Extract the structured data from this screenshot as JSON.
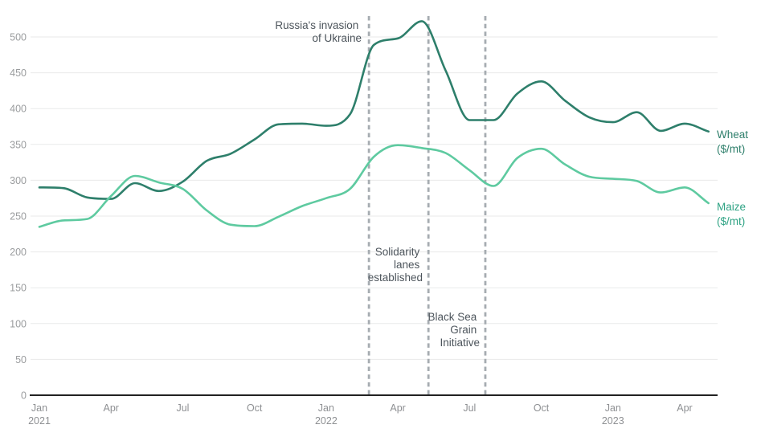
{
  "chart_data": {
    "type": "line",
    "title": "",
    "xlabel": "",
    "ylabel": "",
    "ylim": [
      0,
      530
    ],
    "grid": "horizontal",
    "yticks": [
      0,
      50,
      100,
      150,
      200,
      250,
      300,
      350,
      400,
      450,
      500
    ],
    "x": [
      "Jan 2021",
      "Feb 2021",
      "Mar 2021",
      "Apr 2021",
      "May 2021",
      "Jun 2021",
      "Jul 2021",
      "Aug 2021",
      "Sep 2021",
      "Oct 2021",
      "Nov 2021",
      "Dec 2021",
      "Jan 2022",
      "Feb 2022",
      "Mar 2022",
      "Apr 2022",
      "May 2022",
      "Jun 2022",
      "Jul 2022",
      "Aug 2022",
      "Sep 2022",
      "Oct 2022",
      "Nov 2022",
      "Dec 2022",
      "Jan 2023",
      "Feb 2023",
      "Mar 2023",
      "Apr 2023",
      "May 2023"
    ],
    "x_ticks": [
      {
        "month": 0,
        "label": "Jan",
        "year": "2021"
      },
      {
        "month": 3,
        "label": "Apr",
        "year": ""
      },
      {
        "month": 6,
        "label": "Jul",
        "year": ""
      },
      {
        "month": 9,
        "label": "Oct",
        "year": ""
      },
      {
        "month": 12,
        "label": "Jan",
        "year": "2022"
      },
      {
        "month": 15,
        "label": "Apr",
        "year": ""
      },
      {
        "month": 18,
        "label": "Jul",
        "year": ""
      },
      {
        "month": 21,
        "label": "Oct",
        "year": ""
      },
      {
        "month": 24,
        "label": "Jan",
        "year": "2023"
      },
      {
        "month": 27,
        "label": "Apr",
        "year": ""
      }
    ],
    "series": [
      {
        "name": "Wheat ($/mt)",
        "color": "#2e7f6b",
        "values": [
          290,
          289,
          276,
          274,
          296,
          285,
          298,
          327,
          337,
          357,
          378,
          379,
          376,
          392,
          489,
          498,
          522,
          453,
          384,
          384,
          421,
          438,
          411,
          388,
          381,
          395,
          369,
          379,
          368
        ]
      },
      {
        "name": "Maize ($/mt)",
        "color": "#5ecaa0",
        "values": [
          235,
          244,
          246,
          278,
          306,
          297,
          288,
          258,
          238,
          236,
          249,
          264,
          275,
          288,
          333,
          349,
          345,
          338,
          314,
          292,
          331,
          344,
          322,
          305,
          302,
          299,
          283,
          290,
          268
        ]
      }
    ],
    "legend_position": "right-of-lines"
  },
  "legend": {
    "wheat": {
      "name": "Wheat",
      "unit": "($/mt)",
      "color": "#2e7f6b"
    },
    "maize": {
      "name": "Maize",
      "unit": "($/mt)",
      "color": "#2fa384"
    }
  },
  "events": [
    {
      "name": "russias-invasion-of-ukraine",
      "month_index": 13.79
    },
    {
      "name": "solidarity-lanes-established",
      "month_index": 16.28
    },
    {
      "name": "black-sea-grain-initiative",
      "month_index": 18.66
    }
  ],
  "annotations": {
    "invasion": {
      "lines": [
        "Russia's invasion",
        "of Ukraine"
      ]
    },
    "solidarity": {
      "lines": [
        "Solidarity",
        "lanes",
        "established"
      ]
    },
    "blacksea": {
      "lines": [
        "Black Sea",
        "Grain",
        "Initiative"
      ]
    }
  },
  "colors": {
    "grid": "#e9eaea",
    "axis": "#222222",
    "event_line": "#a6acb1",
    "tick_text": "#9a9c9e",
    "annotation_text": "#4d555c"
  }
}
